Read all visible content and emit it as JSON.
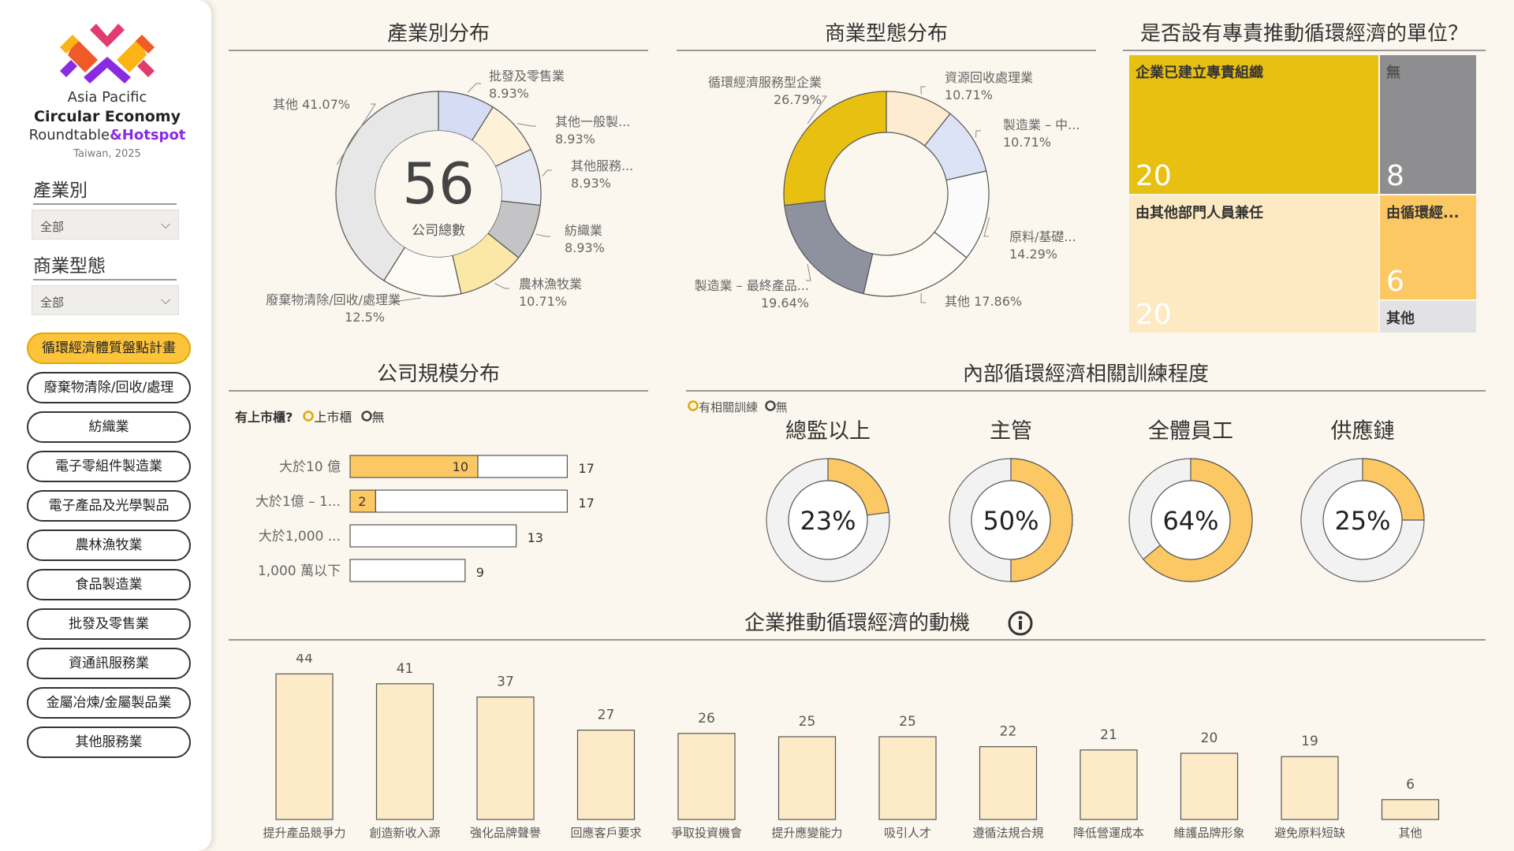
{
  "sidebar": {
    "logo": {
      "line1": "Asia Pacific",
      "line2": "Circular Economy",
      "line3a": "Roundtable",
      "line3b": "&Hotspot",
      "line4": "Taiwan, 2025"
    },
    "filters": [
      {
        "label": "產業別",
        "value": "全部"
      },
      {
        "label": "商業型態",
        "value": "全部"
      }
    ],
    "pills": [
      {
        "label": "循環經濟體質盤點計畫",
        "active": true
      },
      {
        "label": "廢棄物清除/回收/處理"
      },
      {
        "label": "紡織業"
      },
      {
        "label": "電子零組件製造業"
      },
      {
        "label": "電子產品及光學製品"
      },
      {
        "label": "農林漁牧業"
      },
      {
        "label": "食品製造業"
      },
      {
        "label": "批發及零售業"
      },
      {
        "label": "資通訊服務業"
      },
      {
        "label": "金屬冶煉/金屬製品業"
      },
      {
        "label": "其他服務業"
      }
    ]
  },
  "titles": {
    "industry": "產業別分布",
    "business": "商業型態分布",
    "unit": "是否設有專責推動循環經濟的單位？",
    "size": "公司規模分布",
    "training": "內部循環經濟相關訓練程度",
    "motivation": "企業推動循環經濟的動機"
  },
  "icons": {
    "info": "info-icon",
    "chevron": "chevron-down-icon"
  },
  "colors": {
    "accent": "#fcc33b",
    "yellow": "#e8c012",
    "gray": "#8e8e90",
    "light": "#fde9c2",
    "bar": "#fdebc8"
  },
  "chart_data": [
    {
      "type": "pie",
      "id": "industry",
      "center_value": "56",
      "center_label": "公司總數",
      "slices": [
        {
          "label": "批發及零售業",
          "pct": "8.93%",
          "value": 8.93,
          "color": "#d6dcf3"
        },
        {
          "label": "其他一般製...",
          "pct": "8.93%",
          "value": 8.93,
          "color": "#fdf1d8"
        },
        {
          "label": "其他服務...",
          "pct": "8.93%",
          "value": 8.93,
          "color": "#e4e8f2"
        },
        {
          "label": "紡織業",
          "pct": "8.93%",
          "value": 8.93,
          "color": "#c4c4c6"
        },
        {
          "label": "農林漁牧業",
          "pct": "10.71%",
          "value": 10.71,
          "color": "#fbe8a6"
        },
        {
          "label": "廢棄物清除/回收/處理業",
          "pct": "12.5%",
          "value": 12.5,
          "color": "#fdfbf5"
        },
        {
          "label": "其他",
          "pct": "41.07%",
          "value": 41.07,
          "color": "#e7e7e7"
        }
      ]
    },
    {
      "type": "pie",
      "id": "business",
      "slices": [
        {
          "label": "資源回收處理業",
          "pct": "10.71%",
          "value": 10.71,
          "color": "#fdecd2"
        },
        {
          "label": "製造業 – 中...",
          "pct": "10.71%",
          "value": 10.71,
          "color": "#dde3f6"
        },
        {
          "label": "原料/基礎...",
          "pct": "14.29%",
          "value": 14.29,
          "color": "#fbfbfb"
        },
        {
          "label": "其他",
          "pct": "17.86%",
          "value": 17.86,
          "color": "#fdfaf3"
        },
        {
          "label": "製造業 – 最終產品...",
          "pct": "19.64%",
          "value": 19.64,
          "color": "#8e929f"
        },
        {
          "label": "循環經濟服務型企業",
          "pct": "26.79%",
          "value": 26.79,
          "color": "#e8c012"
        }
      ]
    },
    {
      "type": "treemap",
      "id": "unit",
      "cells": [
        {
          "label": "企業已建立專責組織",
          "value": 20
        },
        {
          "label": "無",
          "value": 8
        },
        {
          "label": "由其他部門人員兼任",
          "value": 20
        },
        {
          "label": "由循環經...",
          "value": 6
        },
        {
          "label": "其他",
          "value": ""
        }
      ]
    },
    {
      "type": "bar",
      "id": "size",
      "legend_title": "有上市櫃?",
      "legend": [
        "上市櫃",
        "無"
      ],
      "categories": [
        "大於10 億",
        "大於1億 – 1...",
        "大於1,000 ...",
        "1,000 萬以下"
      ],
      "series": [
        {
          "name": "上市櫃",
          "values": [
            10,
            2,
            0,
            0
          ]
        },
        {
          "name": "無",
          "values": [
            7,
            15,
            13,
            9
          ]
        }
      ],
      "totals": [
        17,
        17,
        13,
        9
      ]
    },
    {
      "type": "pie",
      "id": "training",
      "legend": [
        "有相關訓練",
        "無"
      ],
      "groups": [
        {
          "label": "總監以上",
          "pct_text": "23%",
          "value": 23
        },
        {
          "label": "主管",
          "pct_text": "50%",
          "value": 50
        },
        {
          "label": "全體員工",
          "pct_text": "64%",
          "value": 64
        },
        {
          "label": "供應鏈",
          "pct_text": "25%",
          "value": 25
        }
      ]
    },
    {
      "type": "bar",
      "id": "motivation",
      "categories": [
        "提升產品競爭力",
        "創造新收入源",
        "強化品牌聲譽",
        "回應客戶要求",
        "爭取投資機會",
        "提升應變能力",
        "吸引人才",
        "遵循法規合規",
        "降低營運成本",
        "維護品牌形象",
        "避免原料短缺",
        "其他"
      ],
      "values": [
        44,
        41,
        37,
        27,
        26,
        25,
        25,
        22,
        21,
        20,
        19,
        6
      ]
    }
  ]
}
